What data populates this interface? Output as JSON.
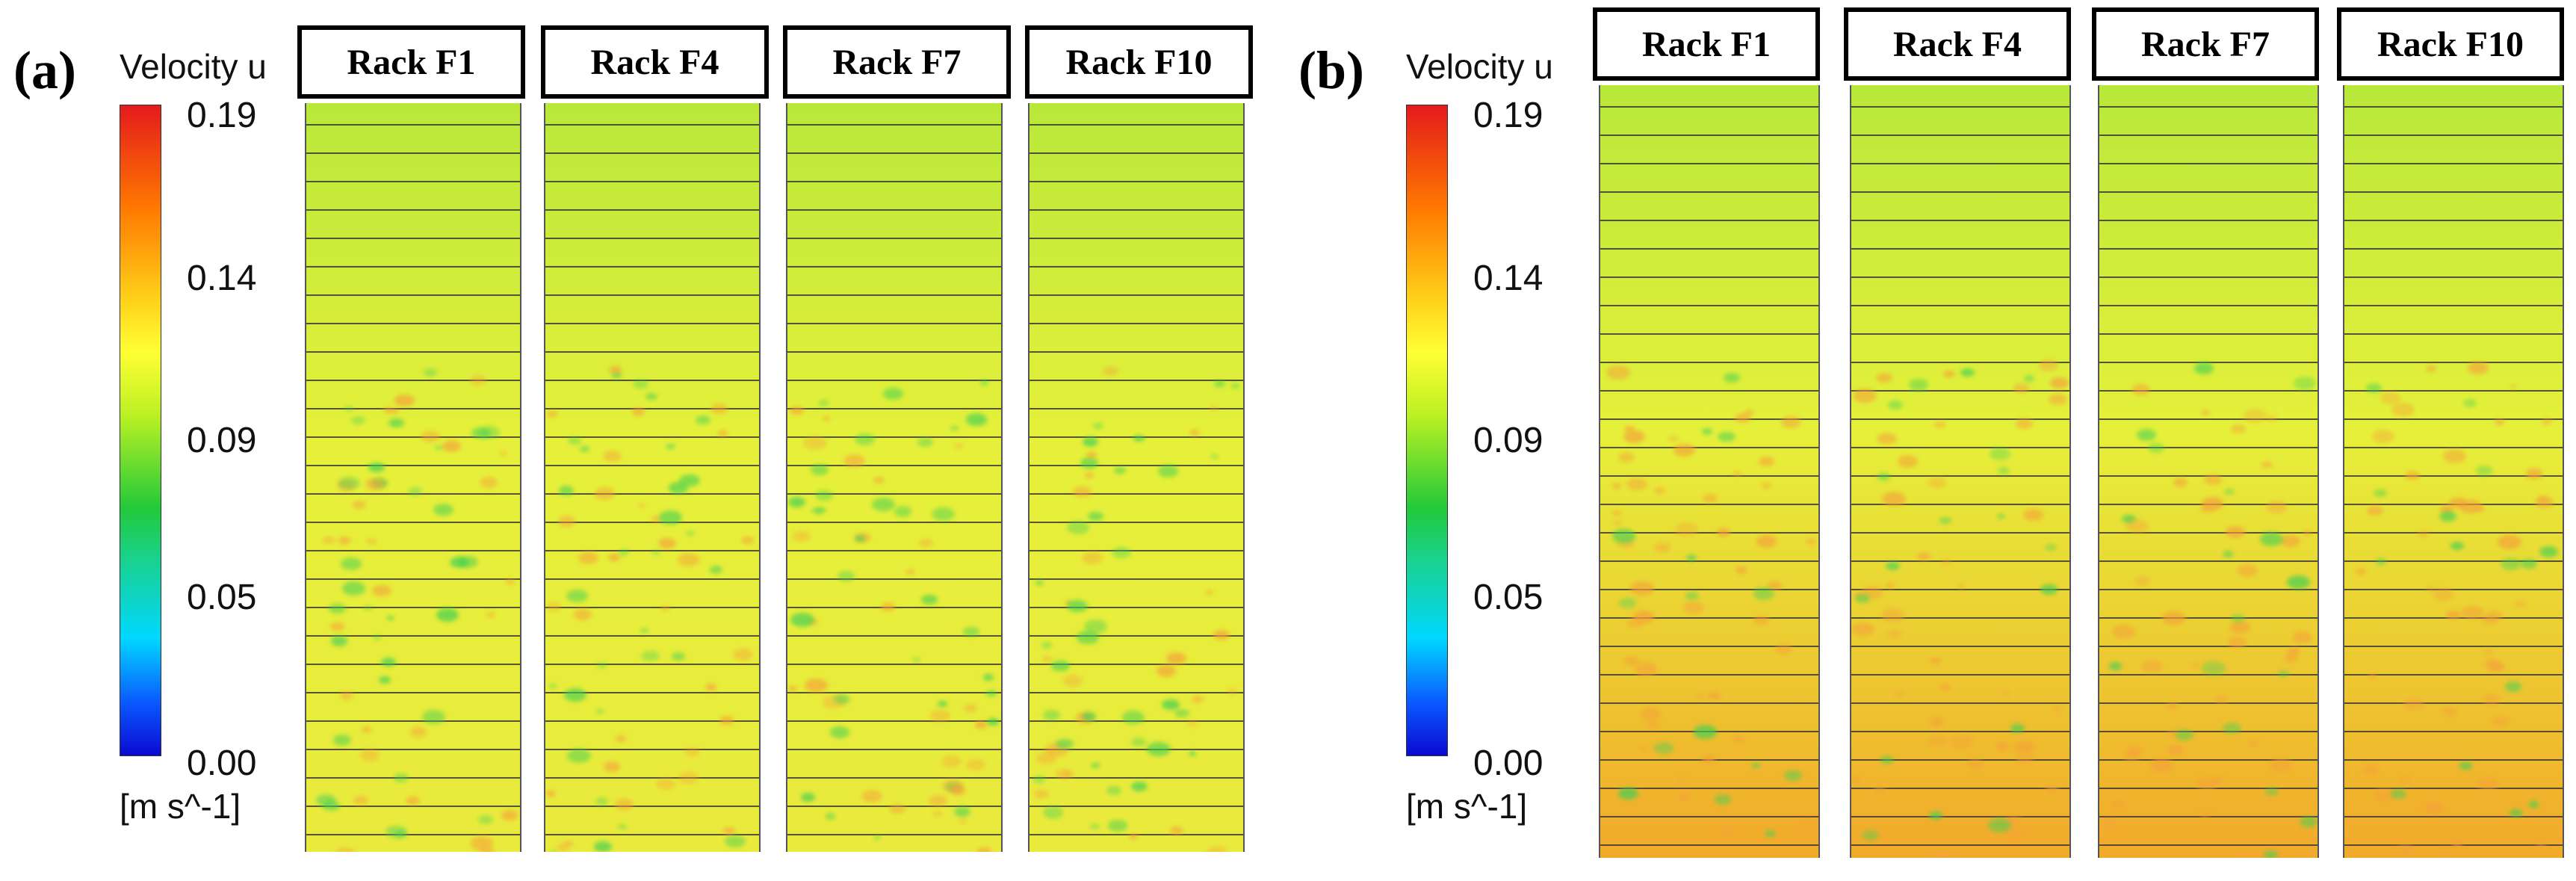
{
  "panels": [
    {
      "label": "(a)",
      "colorbar": {
        "title": "Velocity u",
        "unit": "[m s^-1]",
        "ticks": [
          "0.19",
          "0.14",
          "0.09",
          "0.05",
          "0.00"
        ]
      },
      "racks": [
        {
          "title": "Rack F1"
        },
        {
          "title": "Rack F4"
        },
        {
          "title": "Rack F7"
        },
        {
          "title": "Rack F10"
        }
      ]
    },
    {
      "label": "(b)",
      "colorbar": {
        "title": "Velocity u",
        "unit": "[m s^-1]",
        "ticks": [
          "0.19",
          "0.14",
          "0.09",
          "0.05",
          "0.00"
        ]
      },
      "racks": [
        {
          "title": "Rack F1"
        },
        {
          "title": "Rack F4"
        },
        {
          "title": "Rack F7"
        },
        {
          "title": "Rack F10"
        }
      ]
    }
  ],
  "colors": {
    "field_top": "#b9e83a",
    "field_mid": "#e6f03a",
    "field_bottom_a": "#e9ea3c",
    "field_bottom_b": "#f2a92a",
    "speck_warm": "#f5a13a",
    "speck_cool": "#3fcf55"
  }
}
